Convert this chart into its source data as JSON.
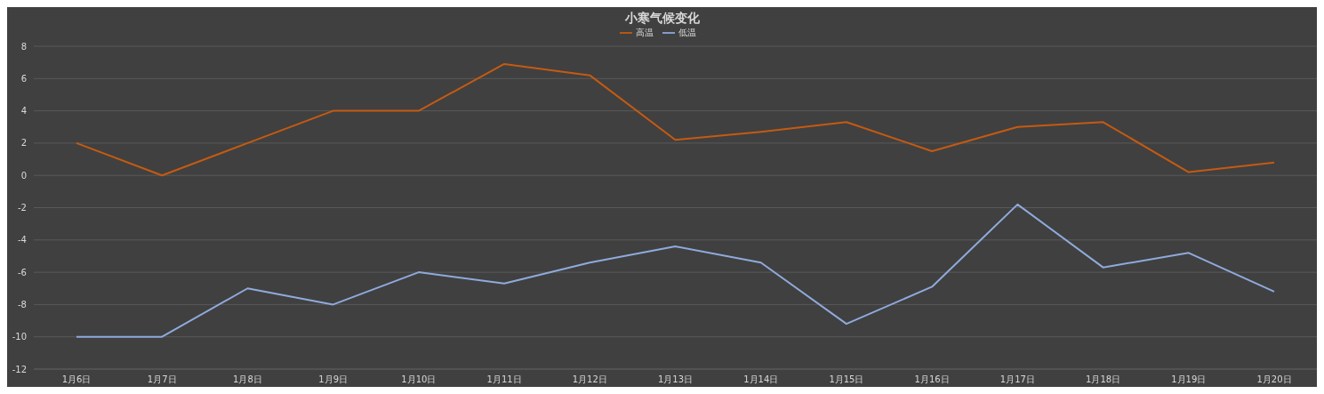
{
  "chart_data": {
    "type": "line",
    "title": "小寒气候变化",
    "categories": [
      "1月6日",
      "1月7日",
      "1月8日",
      "1月9日",
      "1月10日",
      "1月11日",
      "1月12日",
      "1月13日",
      "1月14日",
      "1月15日",
      "1月16日",
      "1月17日",
      "1月18日",
      "1月19日",
      "1月20日"
    ],
    "series": [
      {
        "name": "高温",
        "color": "#c55a11",
        "values": [
          2,
          0,
          2,
          4,
          4,
          6.9,
          6.2,
          2.2,
          2.7,
          3.3,
          1.5,
          3.0,
          3.3,
          0.2,
          0.8
        ]
      },
      {
        "name": "低温",
        "color": "#8faadc",
        "values": [
          -10,
          -10,
          -7,
          -8,
          -6,
          -6.7,
          -5.4,
          -4.4,
          -5.4,
          -9.2,
          -6.9,
          -1.8,
          -5.7,
          -4.8,
          -7.2
        ]
      }
    ],
    "ylim": [
      -12,
      8
    ],
    "yticks": [
      -12,
      -10,
      -8,
      -6,
      -4,
      -2,
      0,
      2,
      4,
      6,
      8
    ],
    "grid": "y",
    "legend": "top",
    "marker": "none",
    "line_style": "solid"
  }
}
